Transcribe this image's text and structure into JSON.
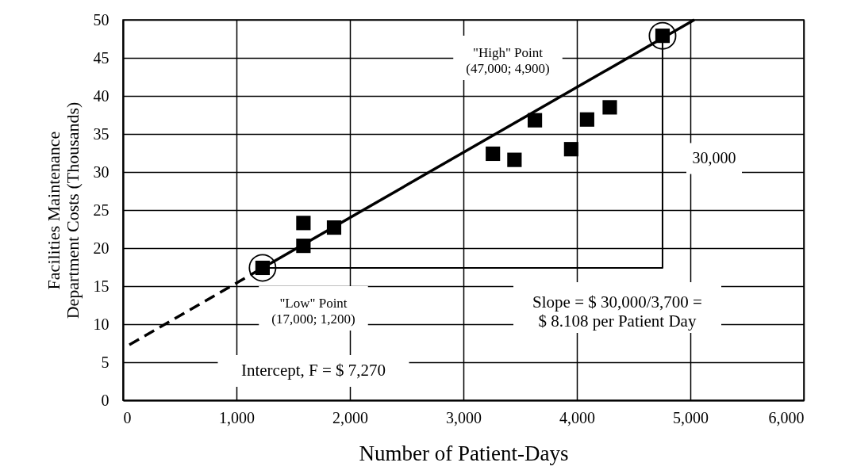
{
  "chart_data": {
    "type": "scatter",
    "xlabel": "Number of Patient-Days",
    "ylabel": "Facilities Maintenance\nDepartment Costs (Thousands)",
    "xlim": [
      0,
      6000
    ],
    "ylim": [
      0,
      50
    ],
    "xticks": [
      0,
      {
        "value": 1000,
        "label": "1,000"
      },
      {
        "value": 2000,
        "label": "2,000"
      },
      {
        "value": 3000,
        "label": "3,000"
      },
      {
        "value": 4000,
        "label": "4,000"
      },
      {
        "value": 5000,
        "label": "5,000"
      },
      {
        "value": 6000,
        "label": "6,000"
      }
    ],
    "yticks": [
      0,
      5,
      10,
      15,
      20,
      25,
      30,
      35,
      40,
      45,
      50
    ],
    "grid": true,
    "series": [
      {
        "marker": "square",
        "color": "#000000",
        "x": [
          1230,
          1590,
          1590,
          1860,
          3260,
          3450,
          3630,
          3950,
          4090,
          4290,
          4755
        ],
        "values": [
          17.4,
          23.3,
          20.3,
          22.7,
          32.4,
          31.6,
          36.8,
          33.0,
          36.9,
          38.5,
          47.9
        ]
      },
      {
        "marker": "circle",
        "color": "#000000",
        "x": [
          1230,
          4755
        ],
        "values": [
          17.4,
          47.9
        ]
      },
      {
        "type": "line",
        "line_style": "dashed",
        "color": "#000000",
        "x": [
          56,
          1230
        ],
        "values": [
          7.3,
          17.4
        ]
      },
      {
        "type": "line",
        "line_style": "solid",
        "color": "#000000",
        "x": [
          1230,
          5035
        ],
        "values": [
          17.4,
          50
        ]
      },
      {
        "type": "line",
        "line_style": "solid",
        "color": "#000000",
        "x": [
          1230,
          4755,
          4755
        ],
        "values": [
          17.4,
          17.4,
          47.9
        ]
      }
    ],
    "annotations": [
      "\"High\" Point\n(47,000; 4,900)",
      "30,000",
      "\"Low\" Point\n(17,000; 1,200)",
      "Slope = $ 30,000/3,700 =\n$ 8.108 per Patient Day",
      "Intercept, F = $ 7,270"
    ]
  }
}
